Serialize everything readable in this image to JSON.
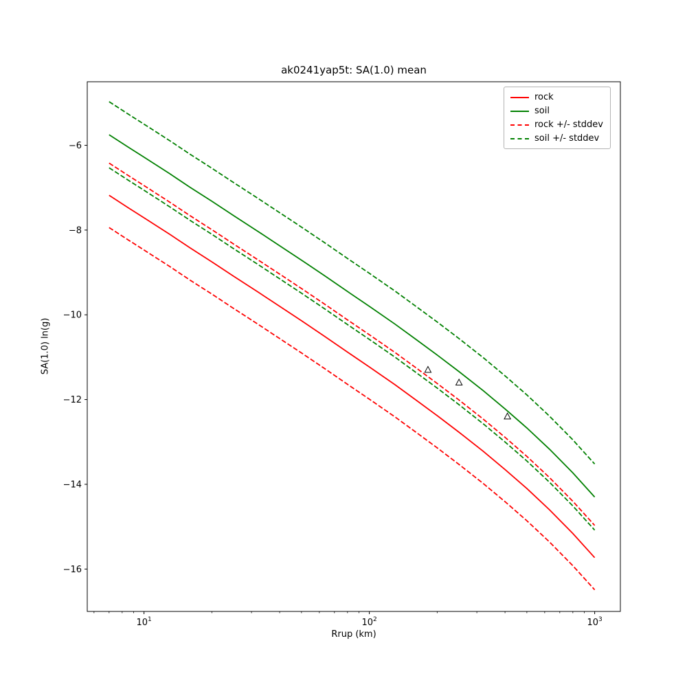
{
  "page": {
    "background": "#ffffff"
  },
  "chart_data": {
    "type": "line",
    "title": "ak0241yap5t: SA(1.0) mean",
    "xlabel": "Rrup (km)",
    "ylabel": "SA(1.0) ln(g)",
    "xscale": "log",
    "grid": false,
    "xlim": [
      5.6,
      1300
    ],
    "ylim": [
      -17.0,
      -4.5
    ],
    "xticks": [
      {
        "value": 10,
        "label": "10",
        "exp": "1"
      },
      {
        "value": 100,
        "label": "10",
        "exp": "2"
      },
      {
        "value": 1000,
        "label": "10",
        "exp": "3"
      }
    ],
    "yticks": [
      {
        "value": -6,
        "label": "−6"
      },
      {
        "value": -8,
        "label": "−8"
      },
      {
        "value": -10,
        "label": "−10"
      },
      {
        "value": -12,
        "label": "−12"
      },
      {
        "value": -14,
        "label": "−14"
      },
      {
        "value": -16,
        "label": "−16"
      }
    ],
    "x": [
      7,
      8.5,
      10,
      13,
      16,
      20,
      25,
      32,
      40,
      50,
      63,
      80,
      100,
      130,
      160,
      200,
      250,
      320,
      400,
      500,
      630,
      800,
      1000
    ],
    "series": [
      {
        "name": "rock",
        "style": "solid",
        "color": "#ff0000",
        "values": [
          -7.18,
          -7.47,
          -7.71,
          -8.1,
          -8.42,
          -8.75,
          -9.09,
          -9.46,
          -9.8,
          -10.14,
          -10.5,
          -10.88,
          -11.23,
          -11.65,
          -12.0,
          -12.38,
          -12.77,
          -13.22,
          -13.65,
          -14.1,
          -14.6,
          -15.16,
          -15.73
        ]
      },
      {
        "name": "soil",
        "style": "solid",
        "color": "#008000",
        "values": [
          -5.75,
          -6.04,
          -6.28,
          -6.67,
          -6.99,
          -7.32,
          -7.66,
          -8.03,
          -8.37,
          -8.71,
          -9.07,
          -9.45,
          -9.8,
          -10.22,
          -10.57,
          -10.95,
          -11.34,
          -11.79,
          -12.22,
          -12.67,
          -13.17,
          -13.73,
          -14.3
        ]
      },
      {
        "name": "rock + stddev",
        "style": "dashed",
        "color": "#ff0000",
        "values": [
          -6.42,
          -6.71,
          -6.95,
          -7.34,
          -7.66,
          -7.99,
          -8.33,
          -8.7,
          -9.04,
          -9.38,
          -9.74,
          -10.12,
          -10.47,
          -10.89,
          -11.24,
          -11.62,
          -12.01,
          -12.46,
          -12.89,
          -13.34,
          -13.84,
          -14.4,
          -14.97
        ]
      },
      {
        "name": "rock - stddev",
        "style": "dashed",
        "color": "#ff0000",
        "values": [
          -7.94,
          -8.23,
          -8.47,
          -8.86,
          -9.18,
          -9.51,
          -9.85,
          -10.22,
          -10.56,
          -10.9,
          -11.26,
          -11.64,
          -11.99,
          -12.41,
          -12.76,
          -13.14,
          -13.53,
          -13.98,
          -14.41,
          -14.86,
          -15.36,
          -15.92,
          -16.49
        ]
      },
      {
        "name": "soil + stddev",
        "style": "dashed",
        "color": "#008000",
        "values": [
          -4.97,
          -5.26,
          -5.5,
          -5.89,
          -6.21,
          -6.54,
          -6.88,
          -7.25,
          -7.59,
          -7.93,
          -8.29,
          -8.67,
          -9.02,
          -9.44,
          -9.79,
          -10.17,
          -10.56,
          -11.01,
          -11.44,
          -11.89,
          -12.39,
          -12.95,
          -13.52
        ]
      },
      {
        "name": "soil - stddev",
        "style": "dashed",
        "color": "#008000",
        "values": [
          -6.53,
          -6.82,
          -7.06,
          -7.45,
          -7.77,
          -8.1,
          -8.44,
          -8.81,
          -9.15,
          -9.49,
          -9.85,
          -10.23,
          -10.58,
          -11.0,
          -11.35,
          -11.73,
          -12.12,
          -12.57,
          -13.0,
          -13.45,
          -13.95,
          -14.51,
          -15.08
        ]
      }
    ],
    "scatter": {
      "marker": "triangle-up",
      "fill": "none",
      "edge_color": "#000000",
      "points": [
        [
          182,
          -11.3
        ],
        [
          250,
          -11.6
        ],
        [
          410,
          -12.4
        ]
      ]
    },
    "legend": {
      "position": "upper right",
      "entries": [
        {
          "label": "rock",
          "color": "#ff0000",
          "style": "solid"
        },
        {
          "label": "soil",
          "color": "#008000",
          "style": "solid"
        },
        {
          "label": "rock +/- stddev",
          "color": "#ff0000",
          "style": "dashed"
        },
        {
          "label": "soil +/- stddev",
          "color": "#008000",
          "style": "dashed"
        }
      ]
    }
  }
}
